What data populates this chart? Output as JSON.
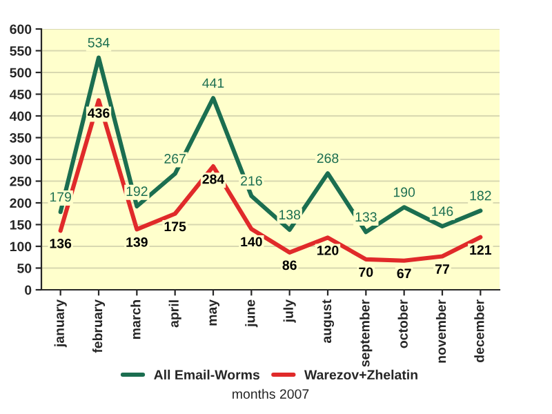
{
  "chart_data": {
    "type": "line",
    "xlabel": "months 2007",
    "categories": [
      "january",
      "february",
      "march",
      "april",
      "may",
      "june",
      "july",
      "august",
      "september",
      "october",
      "november",
      "december"
    ],
    "series": [
      {
        "name": "All Email-Worms",
        "color": "#1b6e50",
        "values": [
          179,
          534,
          192,
          267,
          441,
          216,
          138,
          268,
          133,
          190,
          146,
          182
        ]
      },
      {
        "name": "Warezov+Zhelatin",
        "color": "#e02a2a",
        "values": [
          136,
          436,
          139,
          175,
          284,
          140,
          86,
          120,
          70,
          67,
          77,
          121
        ]
      }
    ],
    "ylim": [
      0,
      600
    ],
    "yticks": [
      0,
      50,
      100,
      150,
      200,
      250,
      300,
      350,
      400,
      450,
      500,
      550,
      600
    ],
    "grid": "y",
    "legend": "bottom",
    "data_labels": true,
    "marker": "none",
    "line_style": "solid"
  }
}
